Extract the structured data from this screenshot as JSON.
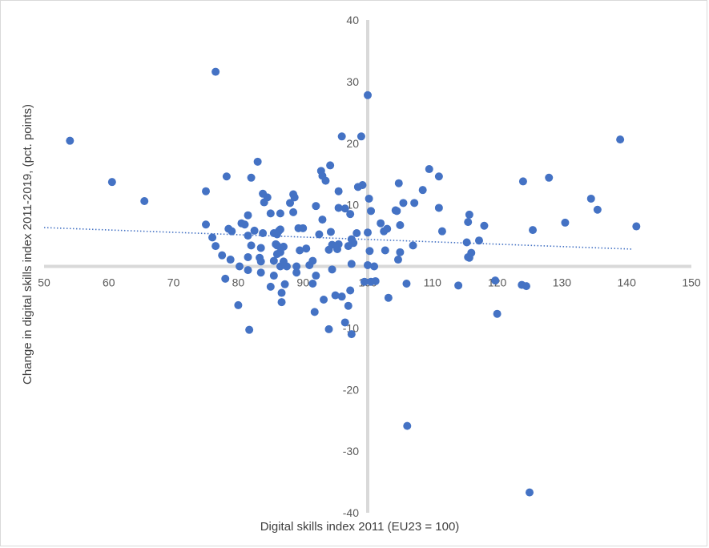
{
  "chart_data": {
    "type": "scatter",
    "title": "",
    "xlabel": "Digital skills index 2011 (EU23 = 100)",
    "ylabel": "Change in digital skills index 2011-2019, (pct. points)",
    "xlim": [
      50,
      150
    ],
    "ylim": [
      -40,
      40
    ],
    "x_ticks": [
      "50",
      "60",
      "70",
      "80",
      "90",
      "100",
      "110",
      "120",
      "130",
      "140",
      "150"
    ],
    "y_ticks": [
      "-40",
      "-30",
      "-20",
      "-10",
      "10",
      "20",
      "30",
      "40"
    ],
    "axes_cross": [
      100,
      0
    ],
    "gridlines": false,
    "legend": "none",
    "marker_color": "#4472c4",
    "axis_color": "#d9d9d9",
    "trendline": {
      "type": "linear",
      "style": "dotted",
      "color": "#4472c4",
      "x": [
        50,
        141
      ],
      "y": [
        6.3,
        2.8
      ]
    },
    "series": [
      {
        "points": [
          [
            54,
            20.4
          ],
          [
            60.5,
            13.7
          ],
          [
            65.5,
            10.6
          ],
          [
            75,
            12.2
          ],
          [
            75,
            6.8
          ],
          [
            76,
            4.7
          ],
          [
            76.5,
            3.3
          ],
          [
            76.5,
            31.6
          ],
          [
            77.5,
            1.8
          ],
          [
            78,
            -2
          ],
          [
            78.2,
            14.6
          ],
          [
            78.5,
            6.1
          ],
          [
            78.8,
            1.1
          ],
          [
            79,
            5.7
          ],
          [
            80,
            -6.3
          ],
          [
            80.2,
            0
          ],
          [
            80.5,
            7
          ],
          [
            81,
            6.8
          ],
          [
            81.5,
            5
          ],
          [
            81.5,
            1.5
          ],
          [
            81.5,
            -0.6
          ],
          [
            81.5,
            8.3
          ],
          [
            81.7,
            -10.3
          ],
          [
            82,
            14.4
          ],
          [
            82,
            3.4
          ],
          [
            82.5,
            5.8
          ],
          [
            83,
            17
          ],
          [
            83.3,
            1.4
          ],
          [
            83.5,
            3
          ],
          [
            83.5,
            0.8
          ],
          [
            83.5,
            -1
          ],
          [
            83.8,
            11.8
          ],
          [
            83.8,
            5.4
          ],
          [
            84,
            10.4
          ],
          [
            84.5,
            11.2
          ],
          [
            85,
            8.6
          ],
          [
            85,
            -3.3
          ],
          [
            85.5,
            5.4
          ],
          [
            85.5,
            -1.5
          ],
          [
            85.5,
            0.9
          ],
          [
            85.8,
            3.6
          ],
          [
            86,
            3.4
          ],
          [
            86,
            2
          ],
          [
            86,
            5.2
          ],
          [
            86.3,
            5.8
          ],
          [
            86.5,
            6
          ],
          [
            86.5,
            8.6
          ],
          [
            86.5,
            2.3
          ],
          [
            86.5,
            0
          ],
          [
            86.7,
            -4.3
          ],
          [
            86.7,
            -5.8
          ],
          [
            87,
            3.2
          ],
          [
            87,
            0.8
          ],
          [
            87.2,
            -2.9
          ],
          [
            87.5,
            0
          ],
          [
            88,
            10.3
          ],
          [
            88.5,
            8.8
          ],
          [
            88.5,
            11.7
          ],
          [
            88.7,
            11.2
          ],
          [
            89,
            0
          ],
          [
            89,
            -1
          ],
          [
            89.3,
            6.2
          ],
          [
            89.5,
            2.6
          ],
          [
            90,
            6.2
          ],
          [
            90.5,
            2.9
          ],
          [
            91,
            0.2
          ],
          [
            91.5,
            -2.8
          ],
          [
            91.5,
            0.9
          ],
          [
            91.8,
            -7.4
          ],
          [
            92,
            9.8
          ],
          [
            92,
            -1.5
          ],
          [
            92.5,
            5.2
          ],
          [
            92.8,
            15.5
          ],
          [
            93,
            14.7
          ],
          [
            93,
            7.6
          ],
          [
            93.2,
            -5.4
          ],
          [
            93.5,
            13.9
          ],
          [
            94,
            -10.2
          ],
          [
            94,
            2.7
          ],
          [
            94.2,
            16.4
          ],
          [
            94.3,
            5.6
          ],
          [
            94.5,
            3.5
          ],
          [
            94.5,
            -0.5
          ],
          [
            95,
            -4.7
          ],
          [
            95.3,
            2.8
          ],
          [
            95.5,
            12.2
          ],
          [
            95.5,
            9.5
          ],
          [
            95.5,
            3.6
          ],
          [
            96,
            21.1
          ],
          [
            96,
            -4.9
          ],
          [
            96.5,
            9.4
          ],
          [
            96.5,
            -9.1
          ],
          [
            97,
            -6.4
          ],
          [
            97,
            3.3
          ],
          [
            97.3,
            8.5
          ],
          [
            97.3,
            -3.9
          ],
          [
            97.5,
            4.4
          ],
          [
            97.5,
            -11
          ],
          [
            97.5,
            0.4
          ],
          [
            97.8,
            3.8
          ],
          [
            98.3,
            5.4
          ],
          [
            98.5,
            12.9
          ],
          [
            99,
            21.1
          ],
          [
            99.2,
            13.2
          ],
          [
            99.5,
            -2.5
          ],
          [
            100,
            27.8
          ],
          [
            100,
            5.5
          ],
          [
            100,
            0.2
          ],
          [
            100.2,
            11
          ],
          [
            100.3,
            2.5
          ],
          [
            100.5,
            9
          ],
          [
            100.5,
            -2.5
          ],
          [
            101,
            0
          ],
          [
            101.2,
            -2.4
          ],
          [
            102,
            7
          ],
          [
            102.5,
            5.7
          ],
          [
            102.7,
            2.6
          ],
          [
            103,
            6.1
          ],
          [
            103.2,
            -5.1
          ],
          [
            104.3,
            9.1
          ],
          [
            104.5,
            9
          ],
          [
            104.7,
            1.1
          ],
          [
            104.8,
            13.5
          ],
          [
            105,
            6.7
          ],
          [
            105,
            2.3
          ],
          [
            105.5,
            10.3
          ],
          [
            106,
            -2.8
          ],
          [
            106.1,
            -25.9
          ],
          [
            107,
            3.4
          ],
          [
            107.2,
            10.3
          ],
          [
            108.5,
            12.4
          ],
          [
            109.5,
            15.8
          ],
          [
            111,
            14.6
          ],
          [
            111,
            9.5
          ],
          [
            111.5,
            5.7
          ],
          [
            114,
            -3.1
          ],
          [
            115.3,
            3.9
          ],
          [
            115.5,
            7.2
          ],
          [
            115.5,
            1.5
          ],
          [
            115.7,
            8.4
          ],
          [
            115.7,
            1.4
          ],
          [
            116,
            2.2
          ],
          [
            117.2,
            4.2
          ],
          [
            118,
            6.6
          ],
          [
            119.7,
            -2.3
          ],
          [
            120,
            -7.7
          ],
          [
            123.8,
            -3
          ],
          [
            124,
            13.8
          ],
          [
            124.5,
            -3.2
          ],
          [
            125,
            -36.7
          ],
          [
            125.5,
            5.9
          ],
          [
            128,
            14.4
          ],
          [
            130.5,
            7.1
          ],
          [
            134.5,
            11
          ],
          [
            135.5,
            9.2
          ],
          [
            139,
            20.6
          ],
          [
            141.5,
            6.5
          ]
        ]
      }
    ]
  }
}
